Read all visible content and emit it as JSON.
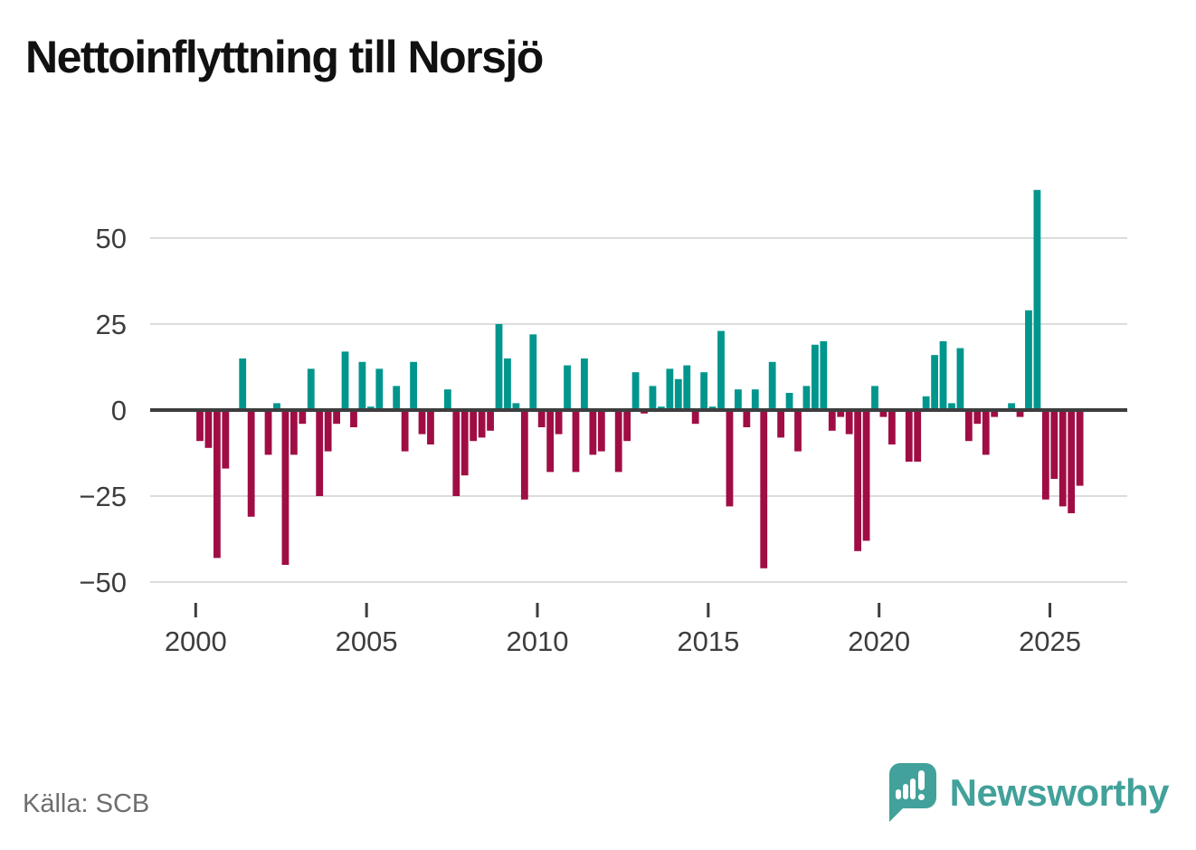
{
  "title": "Nettoinflyttning till Norsjö",
  "source": "Källa: SCB",
  "brand": "Newsworthy",
  "colors": {
    "positive": "#00968D",
    "negative": "#A00D45",
    "grid": "#DCDCDC",
    "zero_line": "#3D3D3D",
    "axis_text": "#3D3D3D",
    "title_text": "#111111",
    "source_text": "#6E6E6E",
    "brand_teal": "#42A19A",
    "background": "#FFFFFF"
  },
  "chart_data": {
    "type": "bar",
    "title": "Nettoinflyttning till Norsjö",
    "frequency": "quarterly",
    "start_year": 2000,
    "start_quarter": 1,
    "values": [
      -9,
      -11,
      -43,
      -17,
      0,
      15,
      -31,
      0,
      -13,
      2,
      -45,
      -13,
      -4,
      12,
      -25,
      -12,
      -4,
      17,
      -5,
      14,
      1,
      12,
      0,
      7,
      -12,
      14,
      -7,
      -10,
      0,
      6,
      -25,
      -19,
      -9,
      -8,
      -6,
      25,
      15,
      2,
      -26,
      22,
      -5,
      -18,
      -7,
      13,
      -18,
      15,
      -13,
      -12,
      0,
      -18,
      -9,
      11,
      -1,
      7,
      1,
      12,
      9,
      13,
      -4,
      11,
      1,
      23,
      -28,
      6,
      -5,
      6,
      -46,
      14,
      -8,
      5,
      -12,
      7,
      19,
      20,
      -6,
      -2,
      -7,
      -41,
      -38,
      7,
      -2,
      -10,
      0,
      -15,
      -15,
      4,
      16,
      20,
      2,
      18,
      -9,
      -4,
      -13,
      -2,
      0,
      2,
      -2,
      29,
      64,
      -26,
      -20,
      -28,
      -30,
      -22
    ],
    "y_ticks": [
      50,
      25,
      0,
      -25,
      -50
    ],
    "y_tick_labels": [
      "50",
      "25",
      "0",
      "−25",
      "−50"
    ],
    "x_tick_years": [
      2000,
      2005,
      2010,
      2015,
      2020,
      2025
    ],
    "ylim": [
      -55,
      70
    ],
    "grid": true,
    "legend": false
  }
}
